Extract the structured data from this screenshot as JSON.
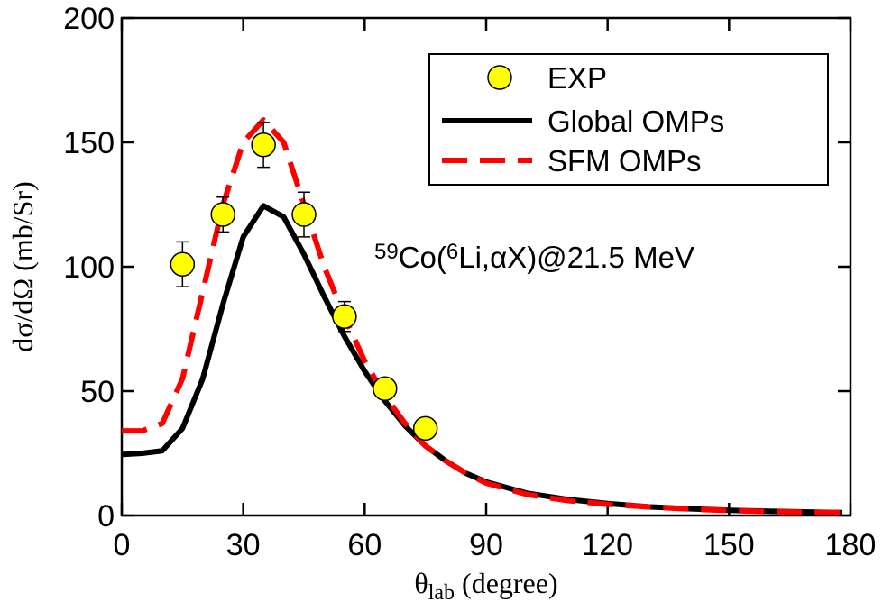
{
  "chart_data": {
    "type": "line",
    "y_label": "dσ/dΩ (mb/Sr)",
    "x_label": [
      {
        "text": "θ",
        "sub": false
      },
      {
        "text": "lab",
        "sub": true
      },
      {
        "text": " (degree)",
        "sub": false
      }
    ],
    "annotation": [
      {
        "text": "59",
        "sup": true
      },
      {
        "text": "Co(",
        "sup": false
      },
      {
        "text": "6",
        "sup": true
      },
      {
        "text": "Li,αX)@21.5 MeV",
        "sup": false
      }
    ],
    "xlim": [
      0,
      180
    ],
    "xticks": [
      0,
      30,
      60,
      90,
      120,
      150,
      180
    ],
    "ylim": [
      0,
      200
    ],
    "yticks": [
      0,
      50,
      100,
      150,
      200
    ],
    "legend": "upper right",
    "points": {
      "name": "EXP",
      "color": "#ffff00",
      "x": [
        15,
        25,
        35,
        45,
        55,
        65,
        75
      ],
      "values": [
        101,
        121,
        149,
        121,
        80,
        51,
        35
      ],
      "errors": [
        9,
        7,
        9,
        9,
        6,
        4,
        3
      ]
    },
    "series": [
      {
        "name": "Global OMPs",
        "color": "#000000",
        "dash": false,
        "x": [
          0,
          5,
          10,
          15,
          20,
          25,
          30,
          35,
          40,
          45,
          50,
          55,
          60,
          65,
          70,
          75,
          80,
          85,
          90,
          100,
          110,
          120,
          130,
          140,
          150,
          160,
          170,
          178
        ],
        "values": [
          24.5,
          25,
          26,
          35,
          55,
          85,
          112,
          124.5,
          120,
          105,
          88,
          72,
          58,
          46,
          36,
          28,
          22,
          17,
          13.5,
          9,
          6.5,
          4.8,
          3.5,
          2.7,
          2.1,
          1.7,
          1.4,
          1.2
        ]
      },
      {
        "name": "SFM OMPs",
        "color": "#ff0000",
        "dash": true,
        "x": [
          0,
          5,
          10,
          15,
          20,
          25,
          30,
          35,
          40,
          45,
          50,
          55,
          60,
          65,
          70,
          75,
          80,
          85,
          90,
          100,
          110,
          120,
          130,
          140,
          150,
          160,
          170,
          178
        ],
        "values": [
          34,
          34,
          37,
          55,
          90,
          125,
          150,
          159,
          150,
          125,
          100,
          80,
          62,
          48,
          37,
          28,
          22,
          17,
          13,
          8.5,
          6,
          4.5,
          3.5,
          2.6,
          2,
          1.6,
          1.3,
          1.2
        ]
      }
    ]
  }
}
